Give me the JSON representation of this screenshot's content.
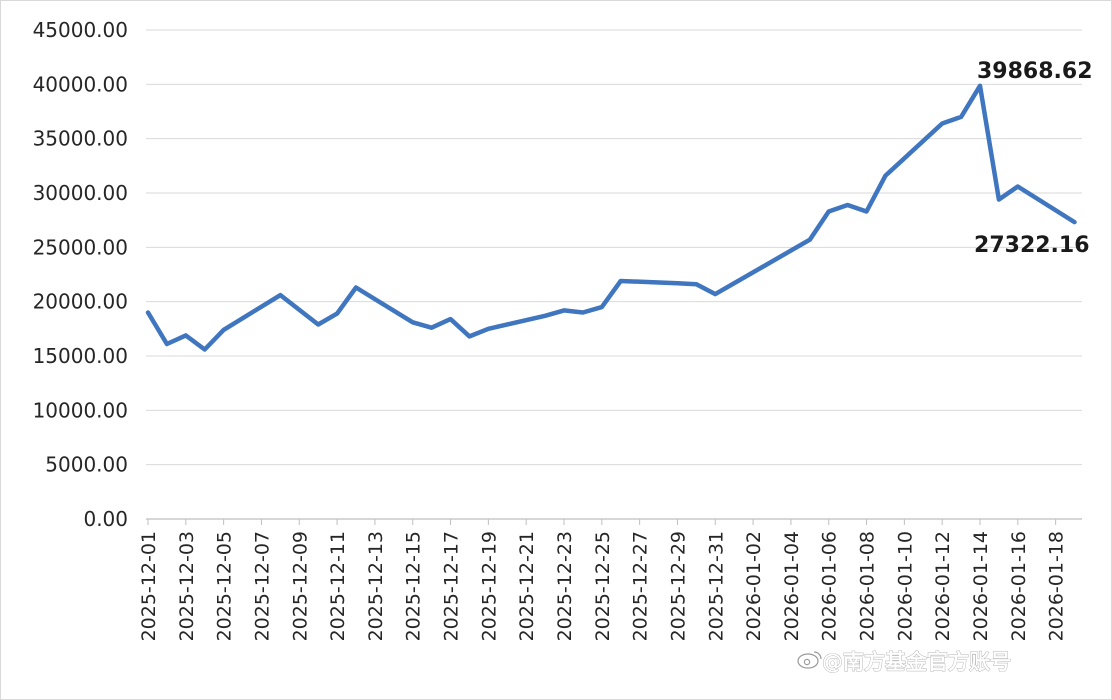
{
  "chart_data": {
    "type": "line",
    "ylim": [
      0,
      45000
    ],
    "yticks": [
      "0.00",
      "5000.00",
      "10000.00",
      "15000.00",
      "20000.00",
      "25000.00",
      "30000.00",
      "35000.00",
      "40000.00",
      "45000.00"
    ],
    "x_tick_labels": [
      "2025-12-01",
      "2025-12-03",
      "2025-12-05",
      "2025-12-07",
      "2025-12-09",
      "2025-12-11",
      "2025-12-13",
      "2025-12-15",
      "2025-12-17",
      "2025-12-19",
      "2025-12-21",
      "2025-12-23",
      "2025-12-25",
      "2025-12-27",
      "2025-12-29",
      "2025-12-31",
      "2026-01-02",
      "2026-01-04",
      "2026-01-06",
      "2026-01-08",
      "2026-01-10",
      "2026-01-12",
      "2026-01-14",
      "2026-01-16",
      "2026-01-18"
    ],
    "line_color": "#3f76bf",
    "grid_color": "#d9d9d9",
    "points": [
      {
        "x": "2025-12-01",
        "y": 19000
      },
      {
        "x": "2025-12-02",
        "y": 16100
      },
      {
        "x": "2025-12-03",
        "y": 16900
      },
      {
        "x": "2025-12-04",
        "y": 15600
      },
      {
        "x": "2025-12-05",
        "y": 17400
      },
      {
        "x": "2025-12-08",
        "y": 20600
      },
      {
        "x": "2025-12-10",
        "y": 17900
      },
      {
        "x": "2025-12-11",
        "y": 18900
      },
      {
        "x": "2025-12-12",
        "y": 21300
      },
      {
        "x": "2025-12-15",
        "y": 18100
      },
      {
        "x": "2025-12-16",
        "y": 17600
      },
      {
        "x": "2025-12-17",
        "y": 18400
      },
      {
        "x": "2025-12-18",
        "y": 16800
      },
      {
        "x": "2025-12-19",
        "y": 17500
      },
      {
        "x": "2025-12-22",
        "y": 18700
      },
      {
        "x": "2025-12-23",
        "y": 19200
      },
      {
        "x": "2025-12-24",
        "y": 19000
      },
      {
        "x": "2025-12-25",
        "y": 19500
      },
      {
        "x": "2025-12-26",
        "y": 21900
      },
      {
        "x": "2025-12-29",
        "y": 21700
      },
      {
        "x": "2025-12-30",
        "y": 21600
      },
      {
        "x": "2025-12-31",
        "y": 20700
      },
      {
        "x": "2026-01-05",
        "y": 25700
      },
      {
        "x": "2026-01-06",
        "y": 28300
      },
      {
        "x": "2026-01-07",
        "y": 28900
      },
      {
        "x": "2026-01-08",
        "y": 28300
      },
      {
        "x": "2026-01-09",
        "y": 31600
      },
      {
        "x": "2026-01-12",
        "y": 36400
      },
      {
        "x": "2026-01-13",
        "y": 37000
      },
      {
        "x": "2026-01-14",
        "y": 39868.62
      },
      {
        "x": "2026-01-15",
        "y": 29400
      },
      {
        "x": "2026-01-16",
        "y": 30600
      },
      {
        "x": "2026-01-19",
        "y": 27322.16
      }
    ],
    "annotations": [
      {
        "text": "39868.62",
        "x": "2026-01-14",
        "y": 39868.62,
        "side": "above-right"
      },
      {
        "text": "27322.16",
        "x": "2026-01-19",
        "y": 27322.16,
        "side": "below"
      }
    ]
  },
  "watermark": {
    "icon": "weibo-icon",
    "text": "@南方基金官方账号"
  }
}
